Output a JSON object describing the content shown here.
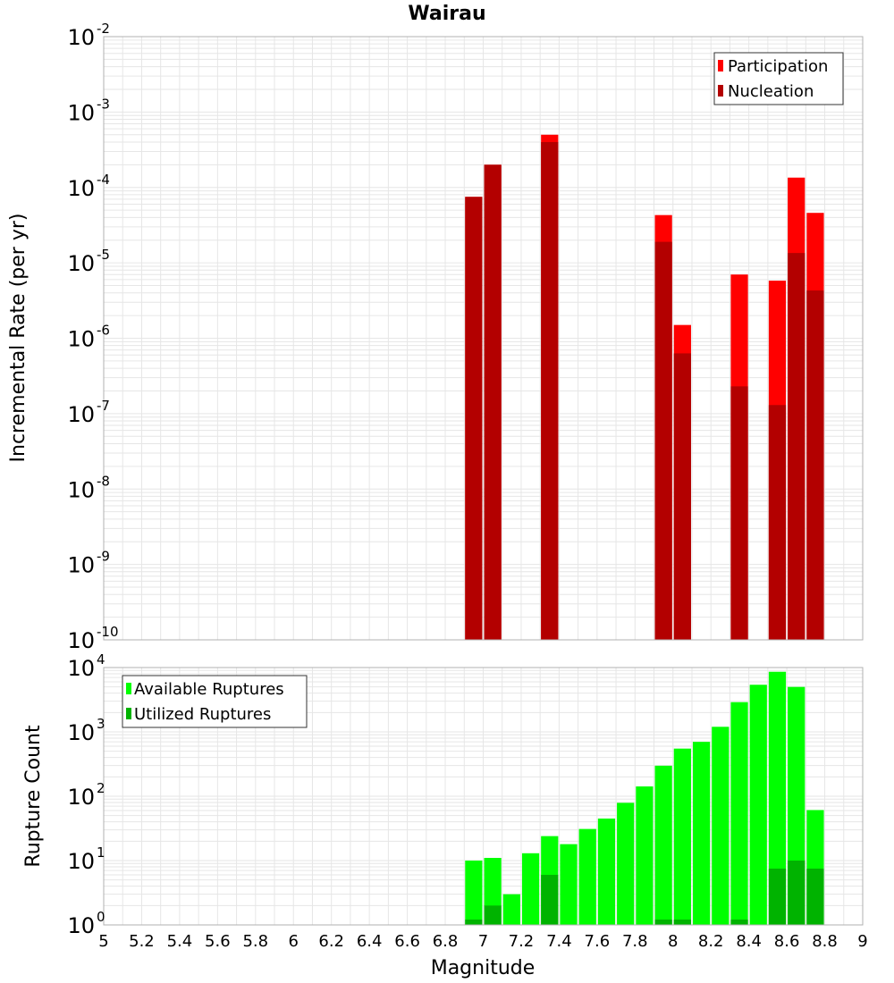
{
  "colors": {
    "participation": "#ff0000",
    "nucleation": "#b30000",
    "available": "#00ff00",
    "utilized": "#00b300",
    "grid": "#e6e6e6",
    "frame": "#b0b0b0"
  },
  "chart_data": [
    {
      "type": "bar",
      "title": "Wairau",
      "xlabel": "",
      "ylabel": "Incremental Rate (per yr)",
      "y_scale": "log",
      "ylim_exponents": [
        -10,
        -2
      ],
      "xlim": [
        5,
        9
      ],
      "bar_width": 0.1,
      "grid": true,
      "legend_position": "top-right",
      "y_tick_labels": [
        {
          "base": "10",
          "exp": "-10"
        },
        {
          "base": "10",
          "exp": "-9"
        },
        {
          "base": "10",
          "exp": "-8"
        },
        {
          "base": "10",
          "exp": "-7"
        },
        {
          "base": "10",
          "exp": "-6"
        },
        {
          "base": "10",
          "exp": "-5"
        },
        {
          "base": "10",
          "exp": "-4"
        },
        {
          "base": "10",
          "exp": "-3"
        },
        {
          "base": "10",
          "exp": "-2"
        }
      ],
      "series": [
        {
          "name": "Participation",
          "x": [
            6.95,
            7.05,
            7.35,
            7.95,
            8.05,
            8.35,
            8.55,
            8.65,
            8.75
          ],
          "values": [
            7.5e-05,
            0.0002,
            0.0005,
            4.3e-05,
            1.5e-06,
            7e-06,
            5.8e-06,
            0.000135,
            4.6e-05
          ]
        },
        {
          "name": "Nucleation",
          "x": [
            6.95,
            7.05,
            7.35,
            7.95,
            8.05,
            8.35,
            8.55,
            8.65,
            8.75
          ],
          "values": [
            7.5e-05,
            0.0002,
            0.0004,
            1.9e-05,
            6.3e-07,
            2.3e-07,
            1.3e-07,
            1.35e-05,
            4.3e-06
          ]
        }
      ]
    },
    {
      "type": "bar",
      "title": "",
      "xlabel": "Magnitude",
      "ylabel": "Rupture Count",
      "y_scale": "log",
      "ylim_exponents": [
        0,
        4
      ],
      "xlim": [
        5,
        9
      ],
      "bar_width": 0.1,
      "grid": true,
      "legend_position": "top-left",
      "x_tick_labels": [
        "5",
        "5.2",
        "5.4",
        "5.6",
        "5.8",
        "6",
        "6.2",
        "6.4",
        "6.6",
        "6.8",
        "7",
        "7.2",
        "7.4",
        "7.6",
        "7.8",
        "8",
        "8.2",
        "8.4",
        "8.6",
        "8.8",
        "9"
      ],
      "y_tick_labels": [
        {
          "base": "10",
          "exp": "0"
        },
        {
          "base": "10",
          "exp": "1"
        },
        {
          "base": "10",
          "exp": "2"
        },
        {
          "base": "10",
          "exp": "3"
        },
        {
          "base": "10",
          "exp": "4"
        }
      ],
      "series": [
        {
          "name": "Available Ruptures",
          "x": [
            6.95,
            7.05,
            7.15,
            7.25,
            7.35,
            7.45,
            7.55,
            7.65,
            7.75,
            7.85,
            7.95,
            8.05,
            8.15,
            8.25,
            8.35,
            8.45,
            8.55,
            8.65,
            8.75
          ],
          "values": [
            10,
            11,
            3,
            13,
            24,
            18,
            31,
            45,
            79,
            142,
            298,
            550,
            700,
            1200,
            2900,
            5400,
            8600,
            5000,
            61
          ]
        },
        {
          "name": "Utilized Ruptures",
          "x": [
            6.95,
            7.05,
            7.15,
            7.25,
            7.35,
            7.45,
            7.55,
            7.65,
            7.75,
            7.85,
            7.95,
            8.05,
            8.15,
            8.25,
            8.35,
            8.45,
            8.55,
            8.65,
            8.75
          ],
          "values": [
            1,
            2,
            0,
            0,
            6,
            0,
            0,
            0,
            0,
            0,
            1,
            1,
            0,
            0,
            1,
            0,
            7.5,
            10,
            7.5
          ]
        }
      ]
    }
  ]
}
